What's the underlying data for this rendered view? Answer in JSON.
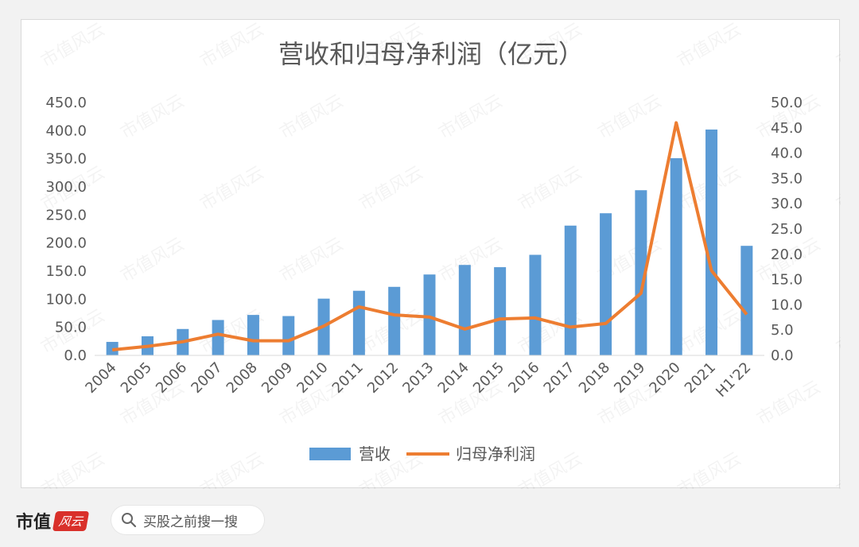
{
  "chart_data": {
    "type": "bar-line-combo",
    "title": "营收和归母净利润（亿元）",
    "categories": [
      "2004",
      "2005",
      "2006",
      "2007",
      "2008",
      "2009",
      "2010",
      "2011",
      "2012",
      "2013",
      "2014",
      "2015",
      "2016",
      "2017",
      "2018",
      "2019",
      "2020",
      "2021",
      "H1'22"
    ],
    "series": [
      {
        "name": "营收",
        "type": "bar",
        "axis": "left",
        "color": "#5b9bd5",
        "values": [
          24,
          34,
          47,
          63,
          72,
          70,
          101,
          115,
          122,
          144,
          161,
          157,
          179,
          231,
          253,
          294,
          351,
          402,
          195
        ]
      },
      {
        "name": "归母净利润",
        "type": "line",
        "axis": "right",
        "color": "#ed7d31",
        "values": [
          1.1,
          1.8,
          2.7,
          4.2,
          2.9,
          2.9,
          5.8,
          9.6,
          8.0,
          7.6,
          5.2,
          7.2,
          7.4,
          5.6,
          6.3,
          12.3,
          46.0,
          16.8,
          8.1
        ]
      }
    ],
    "left_axis": {
      "min": 0,
      "max": 450,
      "step": 50,
      "ticks": [
        "0.0",
        "50.0",
        "100.0",
        "150.0",
        "200.0",
        "250.0",
        "300.0",
        "350.0",
        "400.0",
        "450.0"
      ]
    },
    "right_axis": {
      "min": 0,
      "max": 50,
      "step": 5,
      "ticks": [
        "0.0",
        "5.0",
        "10.0",
        "15.0",
        "20.0",
        "25.0",
        "30.0",
        "35.0",
        "40.0",
        "45.0",
        "50.0"
      ]
    },
    "legend_position": "bottom"
  },
  "footer": {
    "brand": "市值",
    "brand_seal": "风云",
    "search_text": "买股之前搜一搜"
  },
  "watermark_text": "市值风云"
}
